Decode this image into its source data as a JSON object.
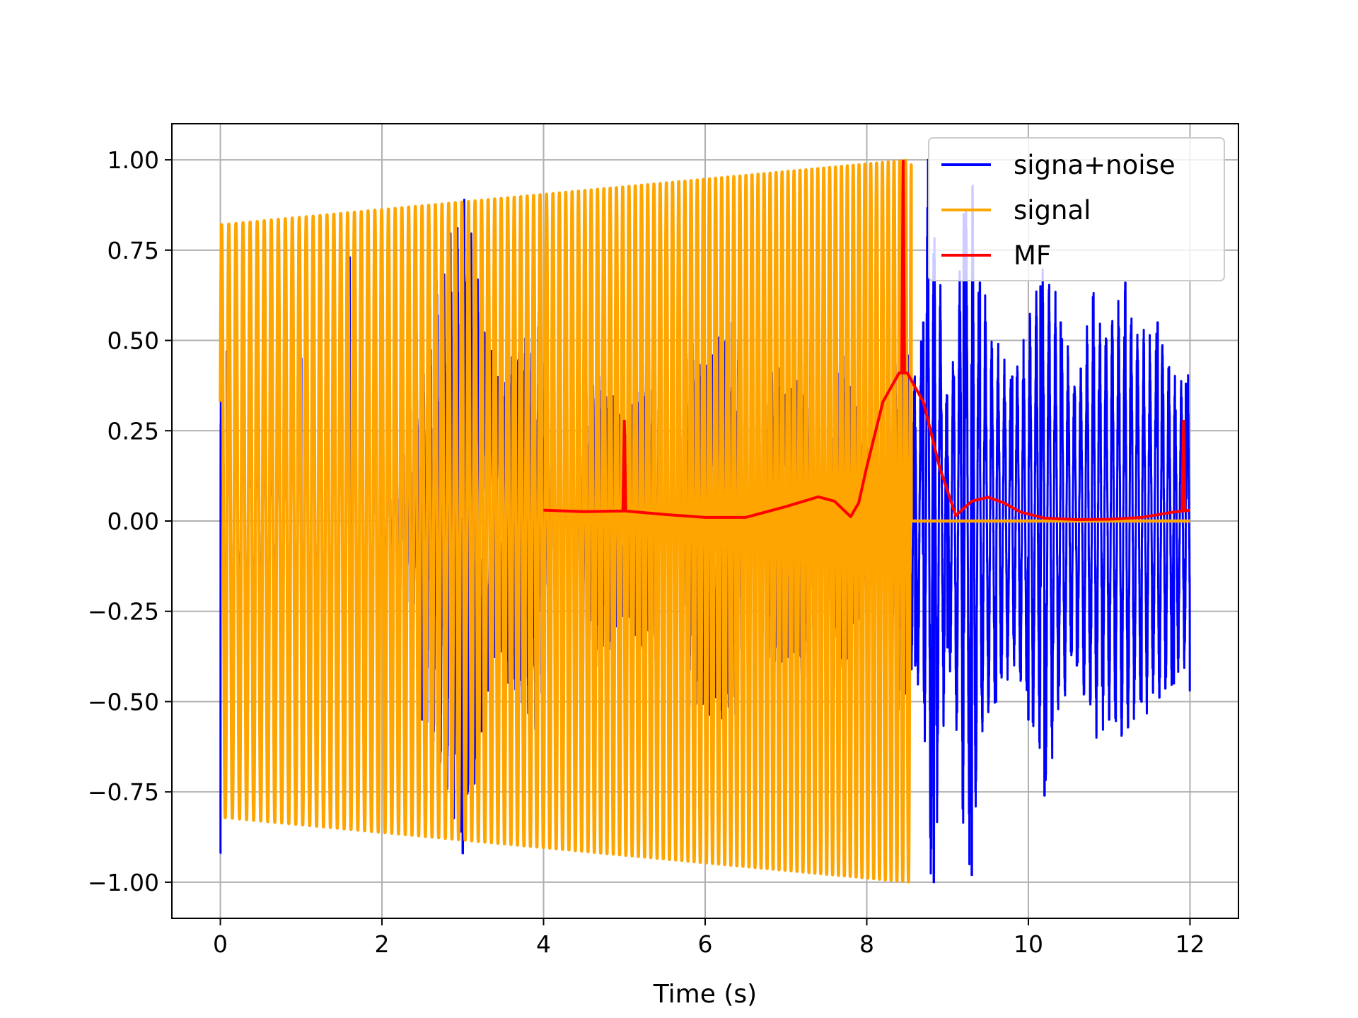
{
  "chart_data": {
    "type": "line",
    "title": "",
    "xlabel": "Time (s)",
    "ylabel": "",
    "xlim": [
      -0.6,
      12.6
    ],
    "ylim": [
      -1.1,
      1.1
    ],
    "xticks": [
      0,
      2,
      4,
      6,
      8,
      10,
      12
    ],
    "xtick_labels": [
      "0",
      "2",
      "4",
      "6",
      "8",
      "10",
      "12"
    ],
    "yticks": [
      1.0,
      0.75,
      0.5,
      0.25,
      0.0,
      -0.25,
      -0.5,
      -0.75,
      -1.0
    ],
    "ytick_labels": [
      "1.00",
      "0.75",
      "0.50",
      "0.25",
      "0.00",
      "−0.25",
      "−0.50",
      "−0.75",
      "−1.00"
    ],
    "grid": true,
    "legend_position": "top-right",
    "series": [
      {
        "name": "signa+noise",
        "color": "#0000ff",
        "description_kind": "noisy chirp over 0-12 s, amplitude about 0.4-1.0",
        "x_range": [
          0,
          12
        ],
        "sample_peaks": [
          [
            0.0,
            -0.92
          ],
          [
            0.08,
            0.47
          ],
          [
            0.2,
            0.3
          ],
          [
            0.6,
            -0.25
          ],
          [
            1.0,
            0.45
          ],
          [
            1.6,
            0.73
          ],
          [
            1.7,
            -0.75
          ],
          [
            2.0,
            0.35
          ],
          [
            2.5,
            -0.55
          ],
          [
            3.0,
            -0.92
          ],
          [
            3.4,
            0.4
          ],
          [
            4.0,
            -0.6
          ],
          [
            4.6,
            0.45
          ],
          [
            5.0,
            0.25
          ],
          [
            5.6,
            0.62
          ],
          [
            6.0,
            -0.5
          ],
          [
            6.5,
            0.58
          ],
          [
            7.0,
            0.35
          ],
          [
            7.5,
            -0.6
          ],
          [
            8.0,
            0.2
          ],
          [
            8.4,
            0.5
          ],
          [
            8.6,
            -0.4
          ],
          [
            8.7,
            0.55
          ],
          [
            8.76,
            1.0
          ],
          [
            8.83,
            -1.0
          ],
          [
            9.0,
            -0.35
          ],
          [
            9.2,
            0.85
          ],
          [
            9.3,
            -0.98
          ],
          [
            9.4,
            0.66
          ],
          [
            9.6,
            -0.5
          ],
          [
            9.8,
            0.4
          ],
          [
            10.0,
            -0.55
          ],
          [
            10.15,
            0.65
          ],
          [
            10.2,
            -0.76
          ],
          [
            10.4,
            0.55
          ],
          [
            10.6,
            -0.4
          ],
          [
            10.8,
            0.62
          ],
          [
            11.0,
            -0.55
          ],
          [
            11.2,
            0.66
          ],
          [
            11.4,
            -0.5
          ],
          [
            11.6,
            0.55
          ],
          [
            11.8,
            -0.45
          ],
          [
            11.95,
            0.38
          ],
          [
            12.0,
            -0.47
          ]
        ]
      },
      {
        "name": "signal",
        "color": "#ffa500",
        "description_kind": "chirp oscillating from 0 to 8.55 s, envelope rising from 0.82 to 1.00, then zero until 12 s",
        "start_time": 0,
        "end_time": 8.55,
        "zero_until": 12,
        "envelope": [
          [
            0,
            0.82
          ],
          [
            8.55,
            1.0
          ]
        ],
        "start_value": 0.33,
        "frequency_start_hz": 11.3,
        "frequency_end_hz": 14.0
      },
      {
        "name": "MF",
        "color": "#ff0000",
        "description_kind": "matched filter output from 4 to 12 s",
        "points": [
          [
            4.0,
            0.03
          ],
          [
            4.5,
            0.026
          ],
          [
            5.0,
            0.028
          ],
          [
            5.5,
            0.018
          ],
          [
            6.0,
            0.01
          ],
          [
            6.5,
            0.01
          ],
          [
            7.0,
            0.04
          ],
          [
            7.4,
            0.067
          ],
          [
            7.6,
            0.055
          ],
          [
            7.8,
            0.012
          ],
          [
            7.9,
            0.05
          ],
          [
            8.0,
            0.15
          ],
          [
            8.2,
            0.33
          ],
          [
            8.4,
            0.41
          ],
          [
            8.5,
            0.41
          ],
          [
            8.7,
            0.33
          ],
          [
            8.9,
            0.15
          ],
          [
            9.1,
            0.015
          ],
          [
            9.3,
            0.055
          ],
          [
            9.5,
            0.066
          ],
          [
            9.7,
            0.05
          ],
          [
            9.9,
            0.025
          ],
          [
            10.2,
            0.008
          ],
          [
            10.6,
            0.004
          ],
          [
            11.0,
            0.005
          ],
          [
            11.4,
            0.01
          ],
          [
            11.8,
            0.025
          ],
          [
            12.0,
            0.03
          ]
        ],
        "spikes": [
          [
            5.0,
            0.28
          ],
          [
            8.45,
            1.0
          ],
          [
            11.92,
            0.28
          ]
        ]
      }
    ]
  }
}
